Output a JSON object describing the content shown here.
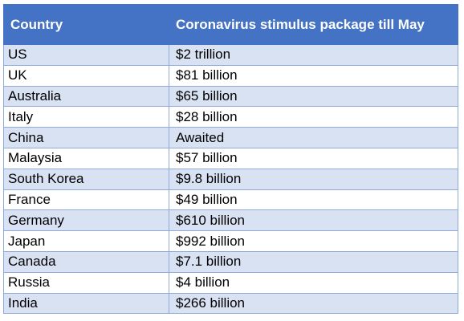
{
  "chart_data": {
    "type": "table",
    "title": "",
    "columns": [
      "Country",
      "Coronavirus stimulus package till May"
    ],
    "rows": [
      [
        "US",
        "$2 trillion"
      ],
      [
        "UK",
        "$81 billion"
      ],
      [
        "Australia",
        "$65 billion"
      ],
      [
        "Italy",
        "$28 billion"
      ],
      [
        "China",
        "Awaited"
      ],
      [
        "Malaysia",
        "$57 billion"
      ],
      [
        "South Korea",
        "$9.8 billion"
      ],
      [
        "France",
        "$49 billion"
      ],
      [
        "Germany",
        "$610 billion"
      ],
      [
        "Japan",
        "$992 billion"
      ],
      [
        "Canada",
        "$7.1 billion"
      ],
      [
        "Russia",
        "$4 billion"
      ],
      [
        "India",
        "$266 billion"
      ]
    ],
    "colors": {
      "header_background": "#4472c4",
      "header_text": "#ffffff",
      "band_row": "#d9e2f3",
      "plain_row": "#ffffff",
      "border": "#8eaadb"
    }
  }
}
